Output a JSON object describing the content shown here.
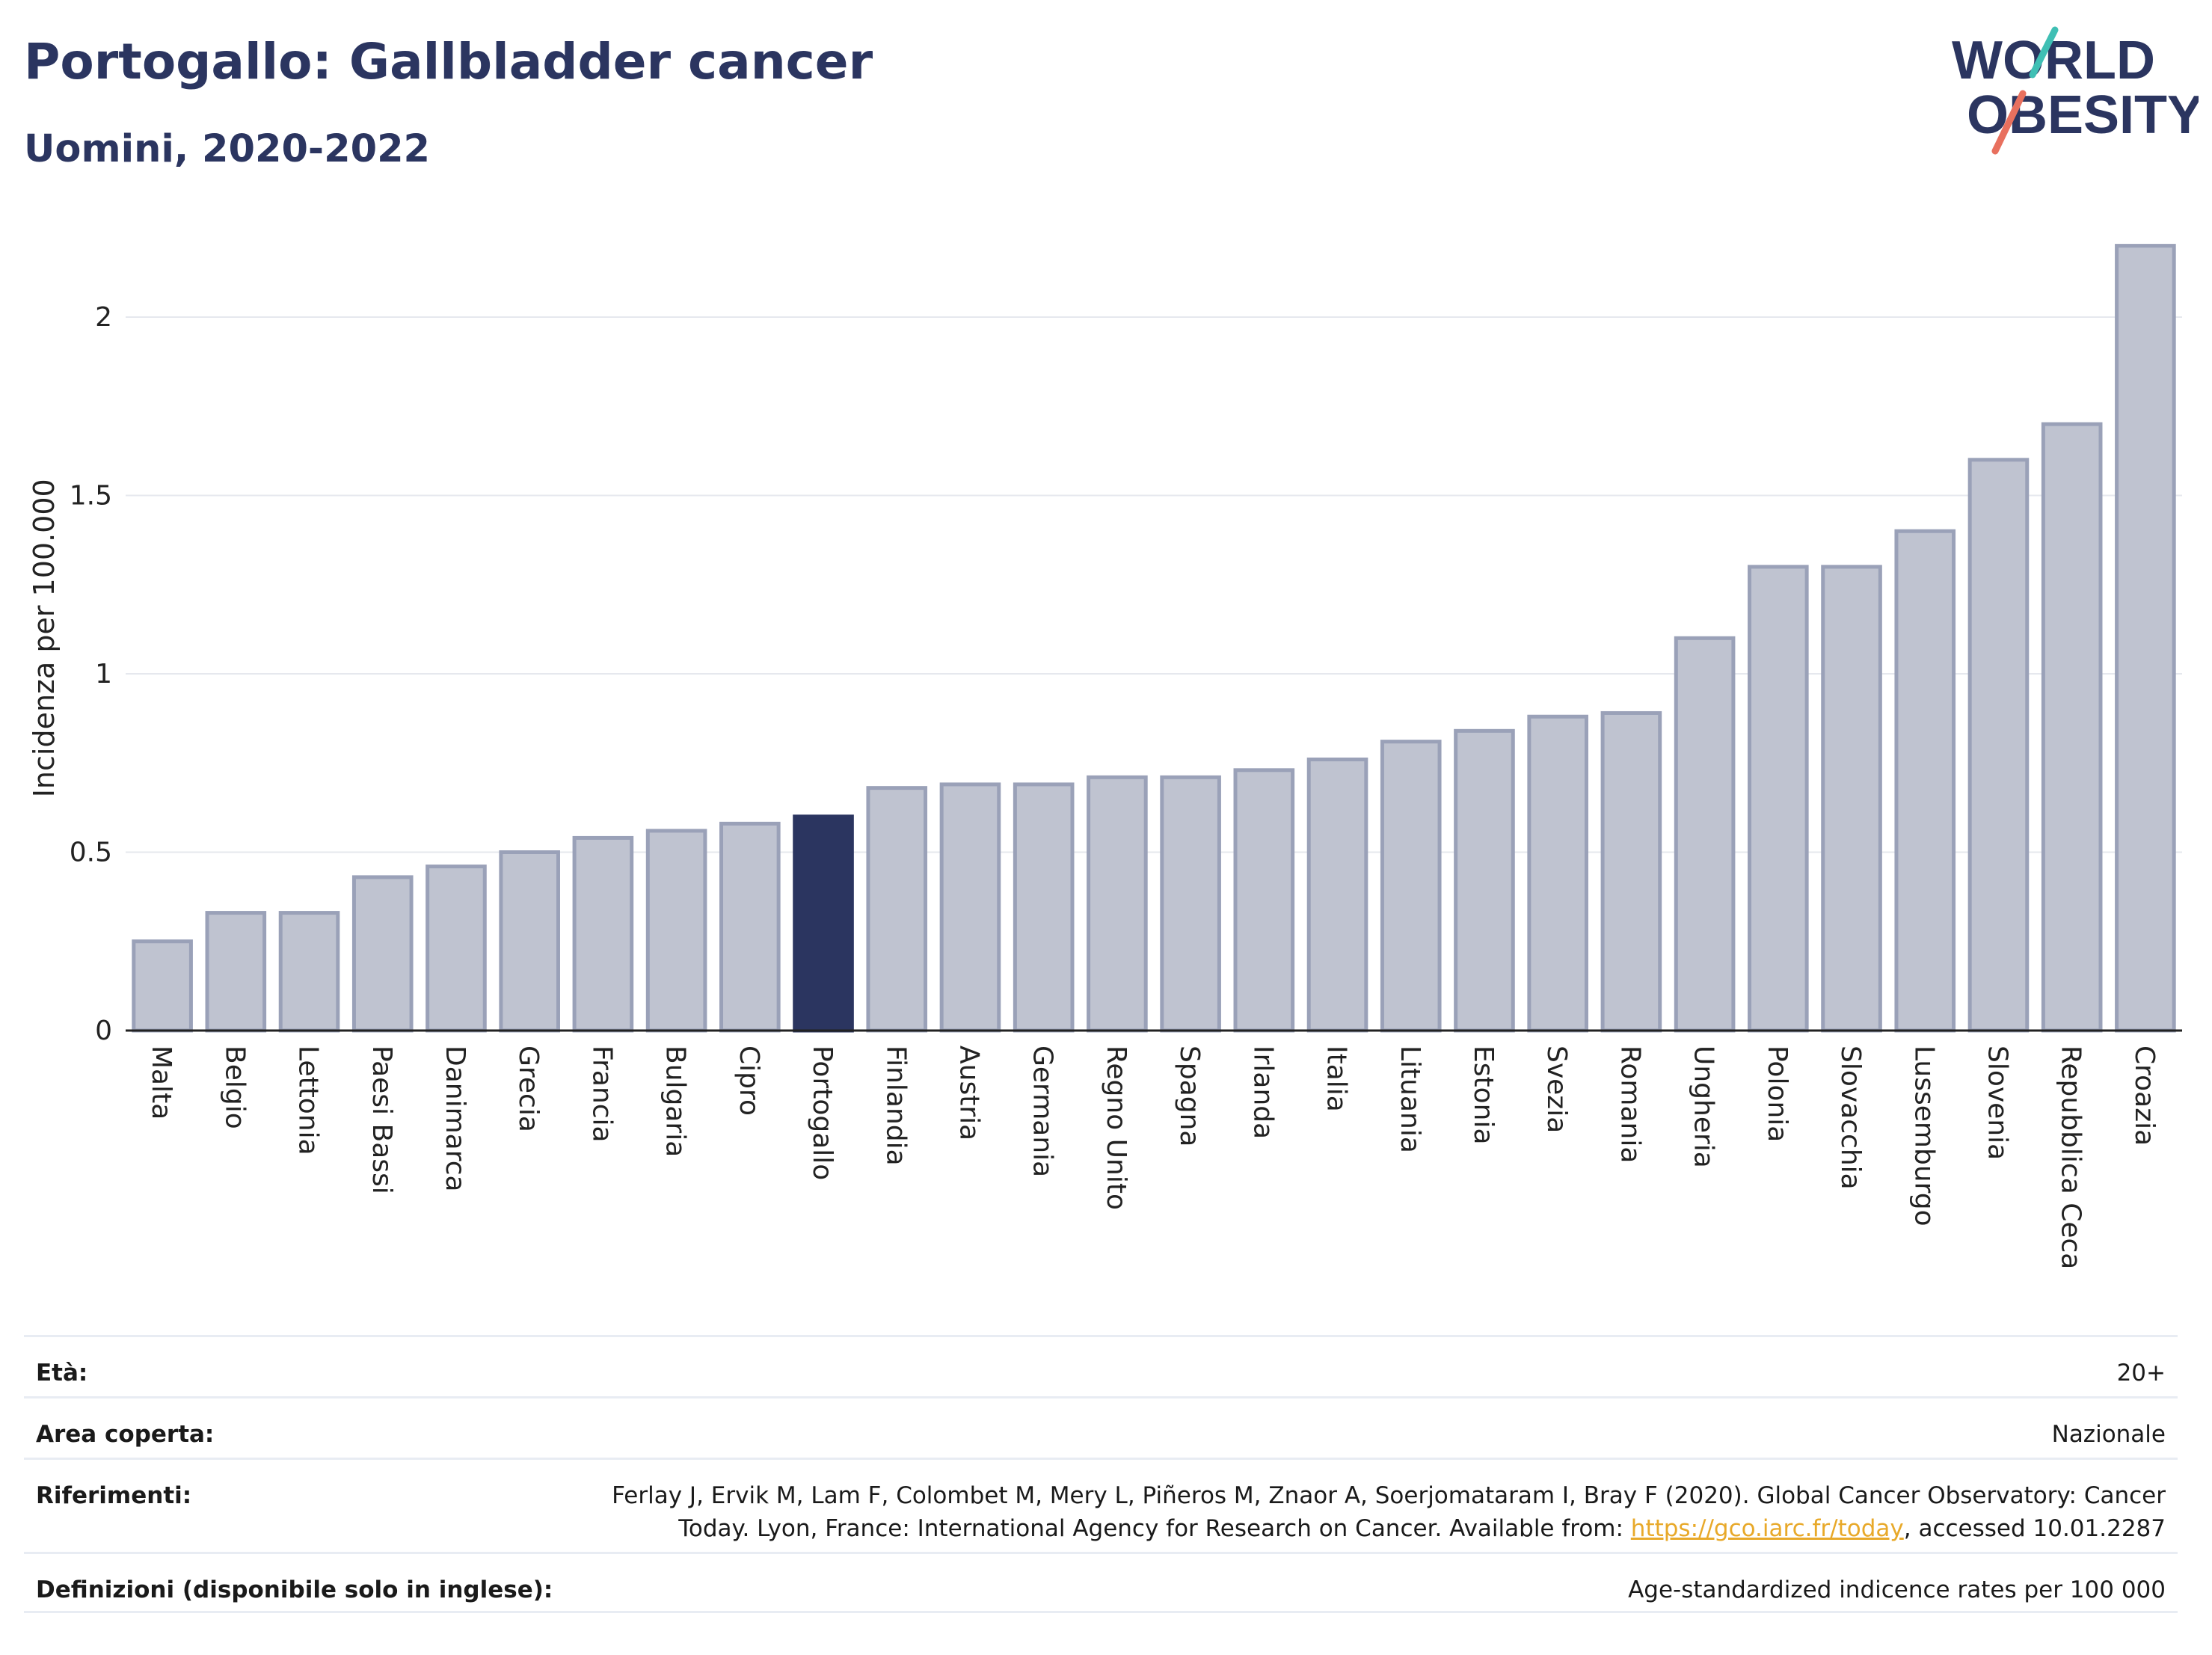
{
  "header": {
    "title": "Portogallo: Gallbladder cancer",
    "subtitle": "Uomini, 2020-2022",
    "logo_line1": "WORLD",
    "logo_line2": "OBESITY"
  },
  "colors": {
    "title": "#2b3560",
    "bar": "#bfc3d0",
    "bar_edge": "#9aa1b8",
    "highlight": "#2b3560",
    "logo_teal": "#3fbfb4",
    "logo_coral": "#e8705e",
    "link": "#e8a92a"
  },
  "chart_data": {
    "type": "bar",
    "title": "Portogallo: Gallbladder cancer",
    "subtitle": "Uomini, 2020-2022",
    "ylabel": "Incidenza per 100.000",
    "xlabel": "",
    "ylim": [
      0,
      2.2
    ],
    "yticks": [
      0,
      0.5,
      1,
      1.5,
      2
    ],
    "ytick_labels": [
      "0",
      "0.5",
      "1",
      "1.5",
      "2"
    ],
    "grid": true,
    "highlight": "Portogallo",
    "categories": [
      "Malta",
      "Belgio",
      "Lettonia",
      "Paesi Bassi",
      "Danimarca",
      "Grecia",
      "Francia",
      "Bulgaria",
      "Cipro",
      "Portogallo",
      "Finlandia",
      "Austria",
      "Germania",
      "Regno Unito",
      "Spagna",
      "Irlanda",
      "Italia",
      "Lituania",
      "Estonia",
      "Svezia",
      "Romania",
      "Ungheria",
      "Polonia",
      "Slovacchia",
      "Lussemburgo",
      "Slovenia",
      "Repubblica Ceca",
      "Croazia"
    ],
    "values": [
      0.25,
      0.33,
      0.33,
      0.43,
      0.46,
      0.5,
      0.54,
      0.56,
      0.58,
      0.6,
      0.68,
      0.69,
      0.69,
      0.71,
      0.71,
      0.73,
      0.76,
      0.81,
      0.84,
      0.88,
      0.89,
      1.1,
      1.3,
      1.3,
      1.4,
      1.6,
      1.7,
      2.2
    ]
  },
  "info": {
    "age_label": "Età:",
    "age_value": "20+",
    "area_label": "Area coperta:",
    "area_value": "Nazionale",
    "refs_label": "Riferimenti:",
    "refs_text_1": "Ferlay J, Ervik M, Lam F, Colombet M, Mery L, Piñeros M, Znaor A, Soerjomataram I, Bray F (2020). Global Cancer Observatory: Cancer Today. Lyon, France: International Agency for Research on Cancer. Available from: ",
    "refs_link": "https://gco.iarc.fr/today",
    "refs_text_2": ", accessed 10.01.2287",
    "defs_label": "Definizioni (disponibile solo in inglese):",
    "defs_value": "Age-standardized indicence rates per 100 000"
  }
}
